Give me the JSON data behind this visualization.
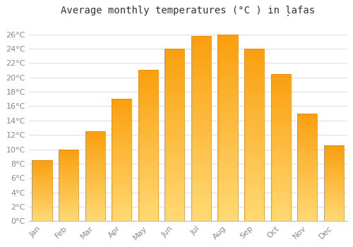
{
  "title": "Average monthly temperatures (°C ) in ļafas",
  "months": [
    "Jan",
    "Feb",
    "Mar",
    "Apr",
    "May",
    "Jun",
    "Jul",
    "Aug",
    "Sep",
    "Oct",
    "Nov",
    "Dec"
  ],
  "values": [
    8.5,
    10.0,
    12.5,
    17.0,
    21.0,
    24.0,
    25.8,
    26.0,
    24.0,
    20.5,
    15.0,
    10.5
  ],
  "ylim": [
    0,
    27.5
  ],
  "yticks": [
    0,
    2,
    4,
    6,
    8,
    10,
    12,
    14,
    16,
    18,
    20,
    22,
    24,
    26
  ],
  "ytick_labels": [
    "0°C",
    "2°C",
    "4°C",
    "6°C",
    "8°C",
    "10°C",
    "12°C",
    "14°C",
    "16°C",
    "18°C",
    "20°C",
    "22°C",
    "24°C",
    "26°C"
  ],
  "bar_color": "#FFA500",
  "bar_edge_color": "#E08000",
  "bar_inner_color": "#FFD080",
  "background_color": "#ffffff",
  "grid_color": "#ddddee",
  "title_fontsize": 10,
  "tick_fontsize": 8,
  "tick_color": "#888888",
  "bar_width": 0.75
}
